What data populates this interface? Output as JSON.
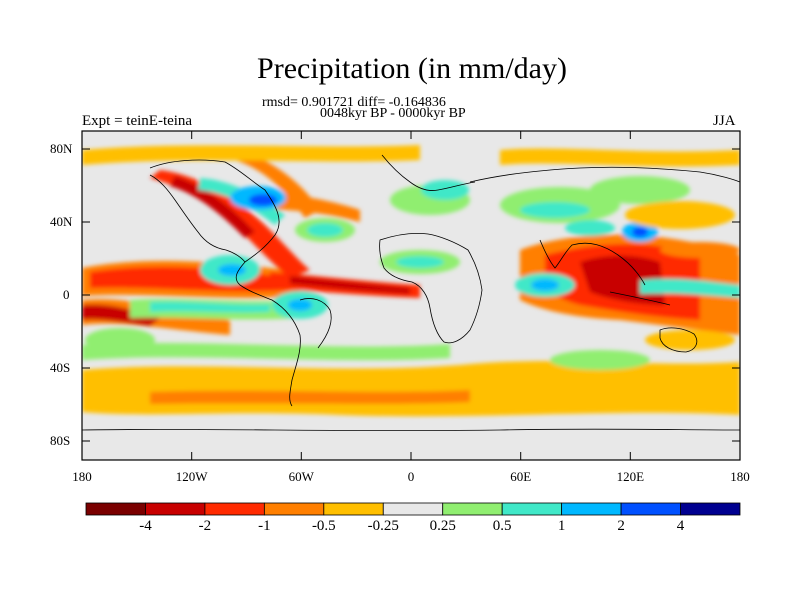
{
  "title": "Precipitation (in mm/day)",
  "stats_line": "rmsd= 0.901721 diff= -0.164836",
  "period_line": "0048kyr BP - 0000kyr BP",
  "experiment_label": "Expt = teinE-teina",
  "season_label": "JJA",
  "latitude_ticks": [
    "80N",
    "40N",
    "0",
    "40S",
    "80S"
  ],
  "longitude_ticks": [
    "180",
    "120W",
    "60W",
    "0",
    "60E",
    "120E",
    "180"
  ],
  "colorbar": {
    "colors": [
      "#7a0000",
      "#c80000",
      "#ff2a00",
      "#ff7f00",
      "#ffbf00",
      "#e8e8e8",
      "#90ee70",
      "#40e8c8",
      "#00b8ff",
      "#0050ff",
      "#000090"
    ],
    "labels": [
      "-4",
      "-2",
      "-1",
      "-0.5",
      "-0.25",
      "0.25",
      "0.5",
      "1",
      "2",
      "4"
    ]
  }
}
